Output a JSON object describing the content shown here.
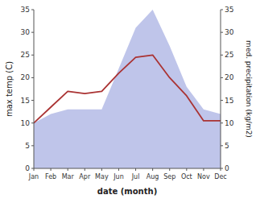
{
  "chart_data": {
    "type": "line",
    "xlabel": "date (month)",
    "ylabel": "max temp (C)",
    "y2label": "med. precipitation (kg/m2)",
    "categories": [
      "Jan",
      "Feb",
      "Mar",
      "Apr",
      "May",
      "Jun",
      "Jul",
      "Aug",
      "Sep",
      "Oct",
      "Nov",
      "Dec"
    ],
    "series": [
      {
        "type": "area",
        "axis": "y2",
        "color": "#b8bfe8",
        "values": [
          10,
          12,
          13,
          13,
          13,
          22,
          31,
          35,
          27,
          18,
          13,
          12
        ]
      },
      {
        "type": "line",
        "color": "#aa3333",
        "values": [
          10,
          13.5,
          17,
          16.5,
          17,
          21,
          24.5,
          25,
          20,
          16,
          10.5,
          10.5
        ]
      }
    ],
    "ylim": [
      0,
      35
    ],
    "yticks": [
      0,
      5,
      10,
      15,
      20,
      25,
      30,
      35
    ],
    "y2lim": [
      0,
      35
    ],
    "y2ticks": [
      0,
      5,
      10,
      15,
      20,
      25,
      30,
      35
    ],
    "grid": false
  }
}
